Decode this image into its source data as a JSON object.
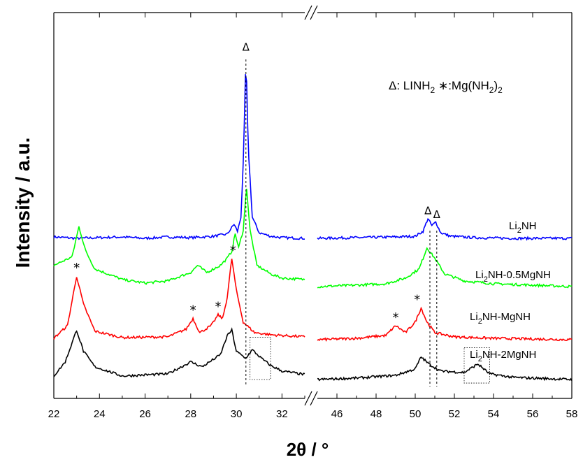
{
  "chart_data": {
    "type": "line",
    "title": "",
    "xlabel": "2θ / °",
    "ylabel": "Intensity / a.u.",
    "x_segments": [
      [
        22,
        33
      ],
      [
        45,
        58
      ]
    ],
    "x_ticks_left": [
      "22",
      "24",
      "26",
      "28",
      "30",
      "32"
    ],
    "x_ticks_right": [
      "46",
      "48",
      "50",
      "52",
      "54",
      "56",
      "58"
    ],
    "legend_text": {
      "delta_symbol": "Δ",
      "delta_name": ": LINH",
      "delta_sub": "2",
      "star_symbol": "∗",
      "star_name": ":Mg(NH",
      "star_sub": "2",
      "star_close": ")",
      "star_sub2": "2"
    },
    "series": [
      {
        "name_parts": [
          "Li",
          "2",
          "NH"
        ],
        "color": "#0000ff",
        "offset": 3,
        "left": [
          [
            22,
            0.02
          ],
          [
            23,
            0
          ],
          [
            24,
            0.01
          ],
          [
            25,
            0.02
          ],
          [
            26,
            0
          ],
          [
            27,
            0.02
          ],
          [
            28,
            0.01
          ],
          [
            29,
            0.03
          ],
          [
            29.6,
            0.06
          ],
          [
            29.9,
            0.2
          ],
          [
            30.05,
            0.1
          ],
          [
            30.2,
            0.3
          ],
          [
            30.32,
            1.2
          ],
          [
            30.42,
            2.6
          ],
          [
            30.52,
            1.3
          ],
          [
            30.7,
            0.3
          ],
          [
            31,
            0.08
          ],
          [
            31.5,
            0.03
          ],
          [
            32,
            0.01
          ],
          [
            33,
            0
          ]
        ],
        "right": [
          [
            45,
            0
          ],
          [
            47,
            0.01
          ],
          [
            49,
            0.02
          ],
          [
            50,
            0.03
          ],
          [
            50.4,
            0.1
          ],
          [
            50.65,
            0.28
          ],
          [
            50.85,
            0.18
          ],
          [
            51.05,
            0.23
          ],
          [
            51.3,
            0.08
          ],
          [
            51.8,
            0.03
          ],
          [
            53,
            0.01
          ],
          [
            55,
            0
          ],
          [
            58,
            0
          ]
        ]
      },
      {
        "name_parts": [
          "Li",
          "2",
          "NH-0.5MgNH"
        ],
        "color": "#00ff00",
        "offset": 2,
        "left": [
          [
            22,
            0.3
          ],
          [
            22.8,
            0.42
          ],
          [
            23.1,
            0.85
          ],
          [
            23.4,
            0.5
          ],
          [
            23.8,
            0.25
          ],
          [
            25,
            0.1
          ],
          [
            26,
            0.05
          ],
          [
            27,
            0.08
          ],
          [
            28,
            0.2
          ],
          [
            28.3,
            0.3
          ],
          [
            28.7,
            0.2
          ],
          [
            29.3,
            0.3
          ],
          [
            29.6,
            0.4
          ],
          [
            29.8,
            0.5
          ],
          [
            29.95,
            0.75
          ],
          [
            30.1,
            0.55
          ],
          [
            30.3,
            0.8
          ],
          [
            30.45,
            1.4
          ],
          [
            30.6,
            0.8
          ],
          [
            30.9,
            0.3
          ],
          [
            31.5,
            0.18
          ],
          [
            32,
            0.12
          ],
          [
            33,
            0.1
          ]
        ],
        "right": [
          [
            45,
            0
          ],
          [
            47,
            0.02
          ],
          [
            48.5,
            0.04
          ],
          [
            49.5,
            0.12
          ],
          [
            50.2,
            0.25
          ],
          [
            50.6,
            0.55
          ],
          [
            51,
            0.4
          ],
          [
            51.5,
            0.18
          ],
          [
            52.5,
            0.08
          ],
          [
            54,
            0.04
          ],
          [
            56,
            0.02
          ],
          [
            58,
            0
          ]
        ]
      },
      {
        "name_parts": [
          "Li",
          "2",
          "NH-MgNH"
        ],
        "color": "#ff0000",
        "offset": 1,
        "left": [
          [
            22,
            0.02
          ],
          [
            22.6,
            0.2
          ],
          [
            23,
            0.9
          ],
          [
            23.3,
            0.5
          ],
          [
            23.8,
            0.12
          ],
          [
            25,
            0.03
          ],
          [
            27,
            0.04
          ],
          [
            27.8,
            0.15
          ],
          [
            28.1,
            0.3
          ],
          [
            28.4,
            0.1
          ],
          [
            28.9,
            0.2
          ],
          [
            29.2,
            0.35
          ],
          [
            29.4,
            0.3
          ],
          [
            29.6,
            0.6
          ],
          [
            29.8,
            1.15
          ],
          [
            30,
            0.7
          ],
          [
            30.3,
            0.25
          ],
          [
            30.8,
            0.1
          ],
          [
            31.5,
            0.07
          ],
          [
            33,
            0.04
          ]
        ],
        "right": [
          [
            45,
            0
          ],
          [
            47,
            0.02
          ],
          [
            48.5,
            0.06
          ],
          [
            49,
            0.2
          ],
          [
            49.5,
            0.1
          ],
          [
            50,
            0.25
          ],
          [
            50.3,
            0.45
          ],
          [
            50.6,
            0.25
          ],
          [
            51,
            0.1
          ],
          [
            52,
            0.04
          ],
          [
            54,
            0.02
          ],
          [
            58,
            0
          ]
        ]
      },
      {
        "name_parts": [
          "Li",
          "2",
          "NH-2MgNH"
        ],
        "color": "#000000",
        "offset": 0,
        "left": [
          [
            22,
            0.05
          ],
          [
            22.5,
            0.25
          ],
          [
            23,
            0.7
          ],
          [
            23.3,
            0.4
          ],
          [
            23.8,
            0.18
          ],
          [
            25,
            0.05
          ],
          [
            27,
            0.08
          ],
          [
            28,
            0.25
          ],
          [
            28.5,
            0.18
          ],
          [
            29.3,
            0.35
          ],
          [
            29.6,
            0.62
          ],
          [
            29.8,
            0.7
          ],
          [
            30,
            0.4
          ],
          [
            30.4,
            0.3
          ],
          [
            30.7,
            0.42
          ],
          [
            31.1,
            0.3
          ],
          [
            31.5,
            0.2
          ],
          [
            32,
            0.12
          ],
          [
            33,
            0.07
          ]
        ],
        "right": [
          [
            45,
            0
          ],
          [
            47,
            0.02
          ],
          [
            49,
            0.06
          ],
          [
            50,
            0.15
          ],
          [
            50.3,
            0.32
          ],
          [
            50.7,
            0.22
          ],
          [
            51.3,
            0.12
          ],
          [
            52.5,
            0.1
          ],
          [
            53.2,
            0.22
          ],
          [
            53.8,
            0.08
          ],
          [
            55,
            0.03
          ],
          [
            58,
            0
          ]
        ]
      }
    ],
    "markers": [
      {
        "symbol": "Δ",
        "x": 30.42,
        "series": 0,
        "y": 2.6
      },
      {
        "symbol": "Δ",
        "x": 50.65,
        "series": 0,
        "y": 0.28
      },
      {
        "symbol": "Δ",
        "x": 51.1,
        "series": 0,
        "y": 0.23
      },
      {
        "symbol": "*",
        "x": 23,
        "series": 2,
        "y": 0.9
      },
      {
        "symbol": "*",
        "x": 28.1,
        "series": 2,
        "y": 0.3
      },
      {
        "symbol": "*",
        "x": 29.2,
        "series": 2,
        "y": 0.35
      },
      {
        "symbol": "*",
        "x": 29.85,
        "series": 2,
        "y": 1.15
      },
      {
        "symbol": "*",
        "x": 49,
        "series": 2,
        "y": 0.2
      },
      {
        "symbol": "*",
        "x": 50.1,
        "series": 2,
        "y": 0.45
      }
    ],
    "reference_lines_x": [
      30.42,
      50.75,
      51.1
    ],
    "dotted_boxes": [
      {
        "x": [
          30.6,
          31.5
        ],
        "y": [
          0.0,
          0.6
        ],
        "series": 3
      },
      {
        "x": [
          52.5,
          53.8
        ],
        "y": [
          -0.05,
          0.45
        ],
        "series": 3
      }
    ]
  }
}
